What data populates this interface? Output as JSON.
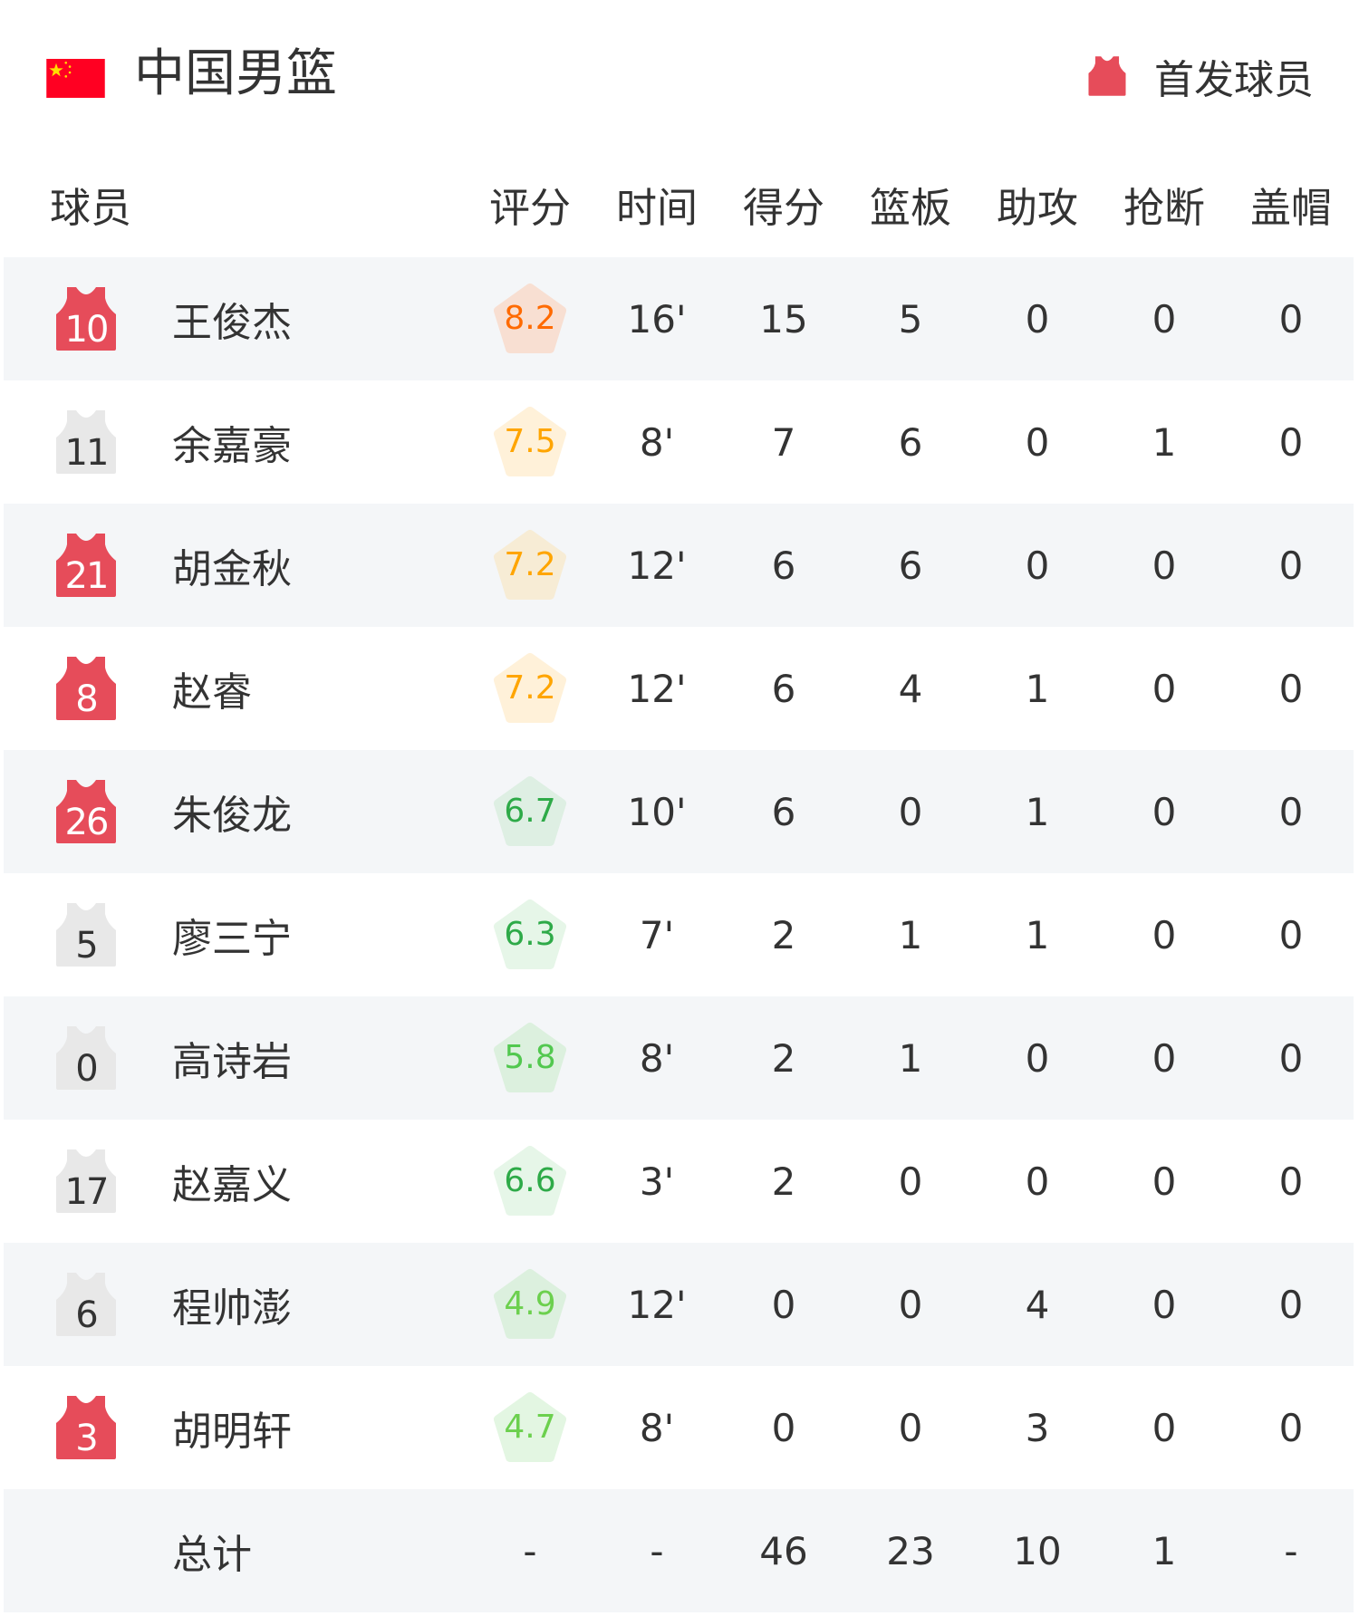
{
  "header": {
    "title": "中国男篮",
    "flag_icon": "china-flag-icon",
    "legend_label": "首发球员",
    "legend_color": "#e64c5a"
  },
  "columns": [
    "球员",
    "评分",
    "时间",
    "得分",
    "篮板",
    "助攻",
    "抢断",
    "盖帽"
  ],
  "colors": {
    "starter_jersey": "#e64c5a",
    "bench_jersey": "#e8e8e8",
    "row_alt_bg": "#f4f6f8"
  },
  "players": [
    {
      "number": "10",
      "name": "王俊杰",
      "starter": true,
      "rating": "8.2",
      "rating_color": "#ff6a00",
      "rating_bg": "#f8dfd2",
      "time": "16'",
      "pts": "15",
      "reb": "5",
      "ast": "0",
      "stl": "0",
      "blk": "0"
    },
    {
      "number": "11",
      "name": "余嘉豪",
      "starter": false,
      "rating": "7.5",
      "rating_color": "#ffa500",
      "rating_bg": "#fff1d9",
      "time": "8'",
      "pts": "7",
      "reb": "6",
      "ast": "0",
      "stl": "1",
      "blk": "0"
    },
    {
      "number": "21",
      "name": "胡金秋",
      "starter": true,
      "rating": "7.2",
      "rating_color": "#ffa500",
      "rating_bg": "#f7ecd5",
      "time": "12'",
      "pts": "6",
      "reb": "6",
      "ast": "0",
      "stl": "0",
      "blk": "0"
    },
    {
      "number": "8",
      "name": "赵睿",
      "starter": true,
      "rating": "7.2",
      "rating_color": "#ffa500",
      "rating_bg": "#fff1d9",
      "time": "12'",
      "pts": "6",
      "reb": "4",
      "ast": "1",
      "stl": "0",
      "blk": "0"
    },
    {
      "number": "26",
      "name": "朱俊龙",
      "starter": true,
      "rating": "6.7",
      "rating_color": "#2eaa48",
      "rating_bg": "#deefe3",
      "time": "10'",
      "pts": "6",
      "reb": "0",
      "ast": "1",
      "stl": "0",
      "blk": "0"
    },
    {
      "number": "5",
      "name": "廖三宁",
      "starter": false,
      "rating": "6.3",
      "rating_color": "#2eaa48",
      "rating_bg": "#e6f6e8",
      "time": "7'",
      "pts": "2",
      "reb": "1",
      "ast": "1",
      "stl": "0",
      "blk": "0"
    },
    {
      "number": "0",
      "name": "高诗岩",
      "starter": false,
      "rating": "5.8",
      "rating_color": "#52c84f",
      "rating_bg": "#dcf0de",
      "time": "8'",
      "pts": "2",
      "reb": "1",
      "ast": "0",
      "stl": "0",
      "blk": "0"
    },
    {
      "number": "17",
      "name": "赵嘉义",
      "starter": false,
      "rating": "6.6",
      "rating_color": "#2eaa48",
      "rating_bg": "#e6f6e8",
      "time": "3'",
      "pts": "2",
      "reb": "0",
      "ast": "0",
      "stl": "0",
      "blk": "0"
    },
    {
      "number": "6",
      "name": "程帅澎",
      "starter": false,
      "rating": "4.9",
      "rating_color": "#6cd04e",
      "rating_bg": "#dcf0de",
      "time": "12'",
      "pts": "0",
      "reb": "0",
      "ast": "4",
      "stl": "0",
      "blk": "0"
    },
    {
      "number": "3",
      "name": "胡明轩",
      "starter": true,
      "rating": "4.7",
      "rating_color": "#6cd04e",
      "rating_bg": "#e3f6e2",
      "time": "8'",
      "pts": "0",
      "reb": "0",
      "ast": "3",
      "stl": "0",
      "blk": "0"
    }
  ],
  "total": {
    "label": "总计",
    "rating": "-",
    "time": "-",
    "pts": "46",
    "reb": "23",
    "ast": "10",
    "stl": "1",
    "blk": "-"
  }
}
